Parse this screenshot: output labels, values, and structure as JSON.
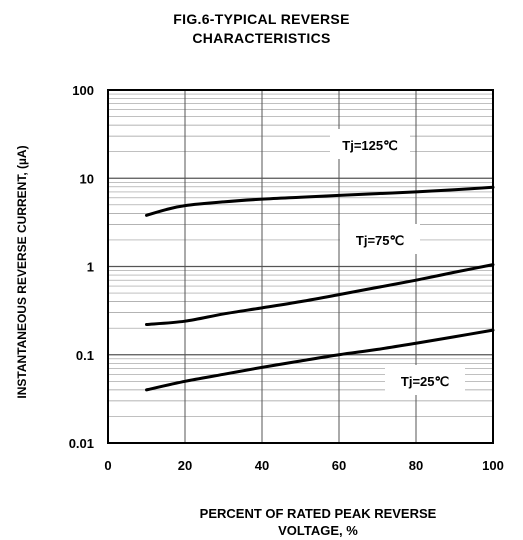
{
  "chart_data": {
    "type": "line",
    "title_line1": "FIG.6-TYPICAL REVERSE",
    "title_line2": "CHARACTERISTICS",
    "xlabel_line1": "PERCENT OF RATED PEAK REVERSE",
    "xlabel_line2": "VOLTAGE, %",
    "ylabel": "INSTANTANEOUS REVERSE CURRENT, (µA)",
    "x_scale": "linear",
    "y_scale": "log",
    "xlim": [
      0,
      100
    ],
    "ylim": [
      0.01,
      100
    ],
    "x_ticks": [
      0,
      20,
      40,
      60,
      80,
      100
    ],
    "x_tick_labels": [
      "0",
      "20",
      "40",
      "60",
      "80",
      "100"
    ],
    "y_ticks": [
      0.01,
      0.1,
      1,
      10,
      100
    ],
    "y_tick_labels": [
      "0.01",
      "0.1",
      "1",
      "10",
      "100"
    ],
    "grid": true,
    "legend": "none",
    "series": [
      {
        "label": "Tj=125℃",
        "x": [
          10,
          15,
          20,
          30,
          40,
          50,
          60,
          70,
          80,
          90,
          100
        ],
        "y": [
          3.8,
          4.4,
          4.9,
          5.4,
          5.8,
          6.1,
          6.4,
          6.7,
          7.0,
          7.4,
          7.9
        ]
      },
      {
        "label": "Tj=75℃",
        "x": [
          10,
          20,
          30,
          40,
          50,
          60,
          70,
          80,
          90,
          100
        ],
        "y": [
          0.22,
          0.24,
          0.29,
          0.34,
          0.4,
          0.48,
          0.58,
          0.7,
          0.86,
          1.05
        ]
      },
      {
        "label": "Tj=25℃",
        "x": [
          10,
          20,
          30,
          40,
          50,
          60,
          70,
          80,
          90,
          100
        ],
        "y": [
          0.04,
          0.05,
          0.06,
          0.072,
          0.085,
          0.1,
          0.115,
          0.135,
          0.16,
          0.19
        ]
      }
    ],
    "line_color": "#000000",
    "grid_color": "#9a9a9a"
  }
}
